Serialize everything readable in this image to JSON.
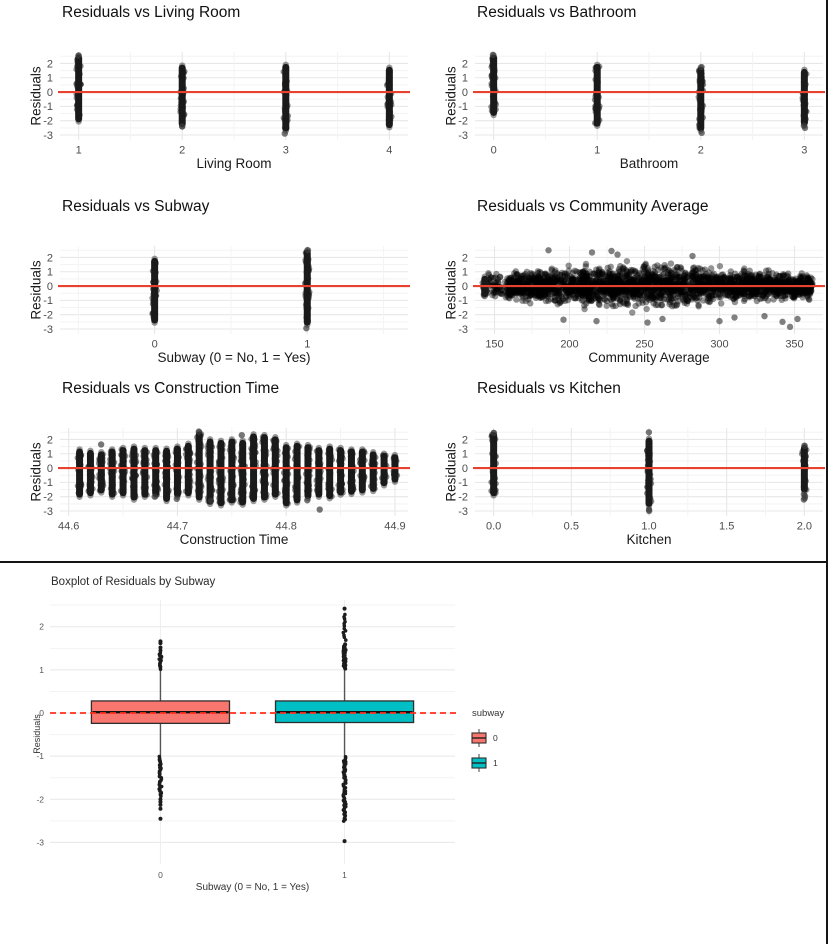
{
  "colors": {
    "red_line": "#E8422E",
    "red_dashed": "#FF2E1F",
    "point": "#1B1B1B",
    "grid_major": "#E7E7E7",
    "grid_minor": "#F3F3F3",
    "tick_text": "#4D4D4D",
    "title_text": "#111111",
    "box0_fill": "#F8766D",
    "box1_fill": "#00BFC4",
    "figure_border": "#141414"
  },
  "chart_data": [
    {
      "type": "strip",
      "title": "Residuals vs Living Room",
      "xlabel": "Living Room",
      "ylabel": "Residuals",
      "xlim": [
        0.82,
        4.18
      ],
      "xticks": [
        1,
        2,
        3,
        4
      ],
      "xtick_labels": [
        "1",
        "2",
        "3",
        "4"
      ],
      "ylim": [
        -3.35,
        2.8
      ],
      "yticks": [
        2,
        1,
        0,
        -1,
        -2,
        -3
      ],
      "hline": 0,
      "strips": [
        [
          1,
          -1.95,
          2.45,
          [
            2.55
          ]
        ],
        [
          2,
          -2.3,
          1.75,
          [
            -2.4
          ]
        ],
        [
          3,
          -2.6,
          1.8,
          [
            -2.9
          ]
        ],
        [
          4,
          -2.35,
          1.6
        ]
      ]
    },
    {
      "type": "strip",
      "title": "Residuals vs Bathroom",
      "xlabel": "Bathroom",
      "ylabel": "Residuals",
      "xlim": [
        -0.18,
        3.18
      ],
      "xticks": [
        0,
        1,
        2,
        3
      ],
      "xtick_labels": [
        "0",
        "1",
        "2",
        "3"
      ],
      "ylim": [
        -3.35,
        2.8
      ],
      "yticks": [
        2,
        1,
        0,
        -1,
        -2,
        -3
      ],
      "hline": 0,
      "strips": [
        [
          0,
          -1.5,
          2.45,
          [
            2.6
          ]
        ],
        [
          1,
          -2.25,
          1.8
        ],
        [
          2,
          -2.6,
          1.6,
          [
            1.75,
            -2.85
          ]
        ],
        [
          3,
          -2.2,
          1.45,
          [
            -2.35,
            -2.5
          ]
        ]
      ]
    },
    {
      "type": "strip",
      "title": "Residuals vs Subway",
      "xlabel": "Subway (0 = No, 1 = Yes)",
      "ylabel": "Residuals",
      "xlim": [
        -0.62,
        1.66
      ],
      "xticks": [
        0,
        1
      ],
      "xtick_labels": [
        "0",
        "1"
      ],
      "ylim": [
        -3.35,
        2.8
      ],
      "yticks": [
        2,
        1,
        0,
        -1,
        -2,
        -3
      ],
      "hline": 0,
      "strips": [
        [
          0,
          -2.45,
          1.8
        ],
        [
          1,
          -2.6,
          2.4,
          [
            2.5,
            -2.95
          ]
        ]
      ]
    },
    {
      "type": "cloud",
      "title": "Residuals vs Community Average",
      "xlabel": "Community Average",
      "ylabel": "Residuals",
      "xlim": [
        137,
        369
      ],
      "xticks": [
        150,
        200,
        250,
        300,
        350
      ],
      "xtick_labels": [
        "150",
        "200",
        "250",
        "300",
        "350"
      ],
      "ylim": [
        -3.35,
        2.8
      ],
      "yticks": [
        2,
        1,
        0,
        -1,
        -2,
        -3
      ],
      "hline": 0,
      "cloud": {
        "n": 2600,
        "x_min": 142,
        "x_max": 362,
        "sparse_below": 158,
        "center": 245,
        "sd_base": 0.85,
        "sd_peak": 1.05,
        "sd_width": 62
      },
      "strips": [
        [
          143.5,
          -0.6,
          0.55
        ]
      ],
      "outlier_points": [
        [
          186,
          2.5
        ],
        [
          215,
          2.35
        ],
        [
          228,
          2.45
        ],
        [
          232,
          2.2
        ],
        [
          282,
          2.1
        ],
        [
          196,
          -2.35
        ],
        [
          218,
          -2.45
        ],
        [
          252,
          -2.55
        ],
        [
          262,
          -2.3
        ],
        [
          300,
          -2.45
        ],
        [
          310,
          -2.2
        ],
        [
          330,
          -2.1
        ],
        [
          342,
          -2.5
        ],
        [
          347,
          -2.85
        ],
        [
          352,
          -2.3
        ]
      ]
    },
    {
      "type": "strip",
      "title": "Residuals vs Construction Time",
      "xlabel": "Construction Time",
      "ylabel": "Residuals",
      "xlim": [
        44.592,
        44.912
      ],
      "xticks": [
        44.6,
        44.7,
        44.8,
        44.9
      ],
      "xtick_labels": [
        "44.6",
        "44.7",
        "44.8",
        "44.9"
      ],
      "ylim": [
        -3.35,
        2.8
      ],
      "yticks": [
        2,
        1,
        0,
        -1,
        -2,
        -3
      ],
      "hline": 0,
      "strips": [
        [
          44.61,
          -1.9,
          1.2
        ],
        [
          44.62,
          -1.8,
          1.1
        ],
        [
          44.63,
          -1.6,
          1.0,
          [
            1.65
          ]
        ],
        [
          44.64,
          -1.9,
          1.2
        ],
        [
          44.65,
          -1.8,
          1.3
        ],
        [
          44.66,
          -2.1,
          1.4
        ],
        [
          44.67,
          -1.9,
          1.3
        ],
        [
          44.68,
          -1.85,
          1.3,
          [
            -2.0
          ]
        ],
        [
          44.69,
          -2.2,
          1.25
        ],
        [
          44.7,
          -1.9,
          1.4,
          [
            -2.15
          ]
        ],
        [
          44.71,
          -1.8,
          1.6
        ],
        [
          44.72,
          -2.1,
          2.4,
          [
            2.55
          ]
        ],
        [
          44.73,
          -2.4,
          1.9,
          [
            -2.3
          ]
        ],
        [
          44.74,
          -2.5,
          1.8
        ],
        [
          44.75,
          -2.3,
          1.9
        ],
        [
          44.76,
          -2.45,
          1.8,
          [
            2.3
          ]
        ],
        [
          44.77,
          -2.2,
          2.25
        ],
        [
          44.78,
          -2.1,
          2.2
        ],
        [
          44.79,
          -1.9,
          2.05
        ],
        [
          44.8,
          -2.5,
          1.5
        ],
        [
          44.81,
          -2.3,
          1.6
        ],
        [
          44.82,
          -2.0,
          1.5,
          [
            -2.25
          ]
        ],
        [
          44.83,
          -1.9,
          1.3,
          [
            -2.9
          ]
        ],
        [
          44.84,
          -2.0,
          1.4
        ],
        [
          44.85,
          -1.75,
          1.3
        ],
        [
          44.86,
          -1.7,
          1.2
        ],
        [
          44.87,
          -1.6,
          1.2
        ],
        [
          44.88,
          -1.5,
          1.0
        ],
        [
          44.89,
          -1.1,
          0.9
        ],
        [
          44.9,
          -0.85,
          0.8
        ]
      ]
    },
    {
      "type": "strip",
      "title": "Residuals vs Kitchen",
      "xlabel": "Kitchen",
      "ylabel": "Residuals",
      "xlim": [
        -0.12,
        2.12
      ],
      "xticks": [
        0,
        0.5,
        1,
        1.5,
        2
      ],
      "xtick_labels": [
        "0.0",
        "0.5",
        "1.0",
        "1.5",
        "2.0"
      ],
      "ylim": [
        -3.35,
        2.8
      ],
      "yticks": [
        2,
        1,
        0,
        -1,
        -2,
        -3
      ],
      "hline": 0,
      "strips": [
        [
          0,
          -1.8,
          2.35,
          [
            2.45
          ]
        ],
        [
          1,
          -2.55,
          1.95,
          [
            2.5,
            -2.9,
            -3.0
          ]
        ],
        [
          2,
          -1.55,
          1.45,
          [
            1.55,
            -1.85,
            -1.95,
            -2.1,
            -2.2
          ]
        ]
      ]
    },
    {
      "type": "box",
      "title": "Boxplot of Residuals by Subway",
      "xlabel": "Subway (0 = No, 1 = Yes)",
      "ylabel": "Residuals",
      "ylim": [
        -3.5,
        2.62
      ],
      "yticks": [
        2,
        1,
        0,
        -1,
        -2,
        -3
      ],
      "categories": [
        "0",
        "1"
      ],
      "hline": {
        "y": 0,
        "style": "dashed"
      },
      "legend": {
        "title": "subway",
        "items": [
          {
            "label": "0",
            "color": "#F8766D"
          },
          {
            "label": "1",
            "color": "#00BFC4"
          }
        ]
      },
      "boxes": [
        {
          "category": "0",
          "color": "#F8766D",
          "q1": -0.24,
          "median": 0.02,
          "q3": 0.28,
          "whisker_low": -1.0,
          "whisker_high": 1.0,
          "outlier_runs": [
            {
              "from": 1.02,
              "to": 1.38,
              "n": 16
            },
            {
              "from": -1.02,
              "to": -1.92,
              "n": 34
            }
          ],
          "outlier_points": [
            1.45,
            1.52,
            1.62,
            1.66,
            -2.0,
            -2.06,
            -2.13,
            -2.22,
            -2.45
          ]
        },
        {
          "category": "1",
          "color": "#00BFC4",
          "q1": -0.22,
          "median": 0.02,
          "q3": 0.28,
          "whisker_low": -1.0,
          "whisker_high": 1.0,
          "outlier_runs": [
            {
              "from": 1.02,
              "to": 1.6,
              "n": 40
            },
            {
              "from": 1.7,
              "to": 2.28,
              "n": 12
            },
            {
              "from": -1.02,
              "to": -2.5,
              "n": 55
            }
          ],
          "outlier_points": [
            2.42,
            -2.97
          ]
        }
      ]
    }
  ]
}
